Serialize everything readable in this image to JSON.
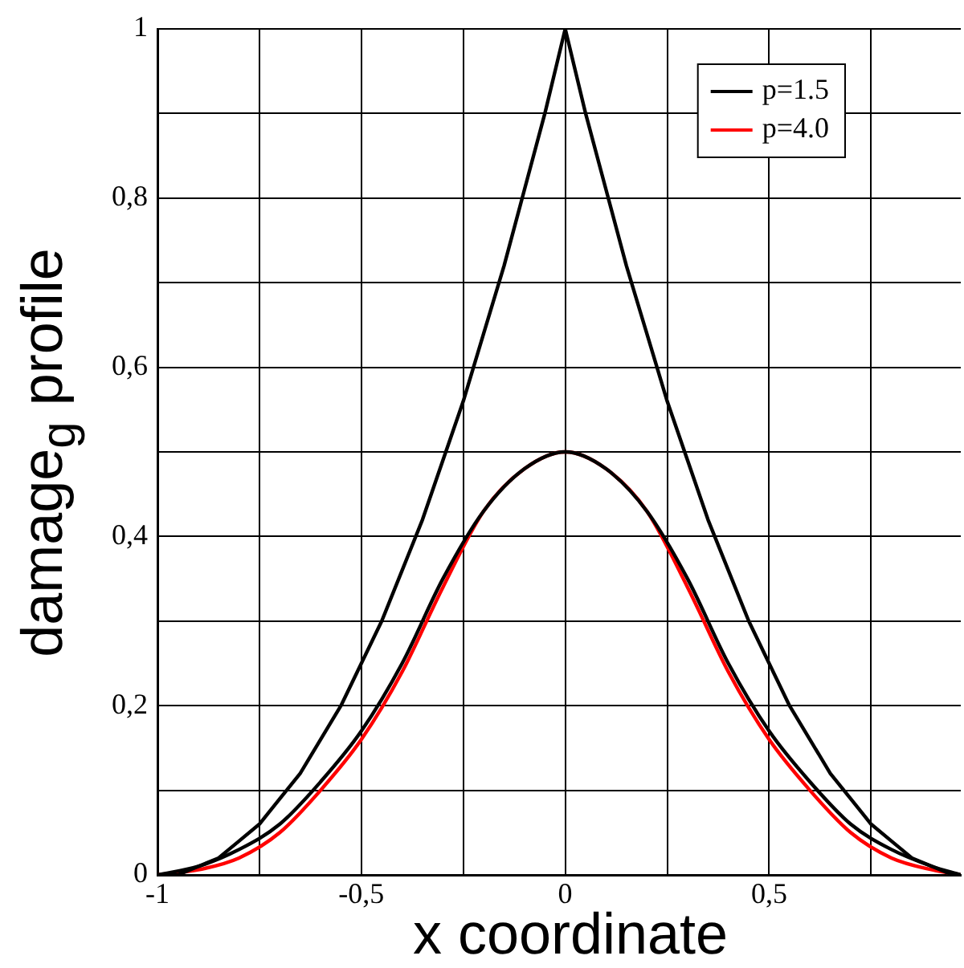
{
  "chart_data": {
    "type": "line",
    "xlabel": "x coordinate",
    "ylabel": "damage$_{g}$ profile",
    "xlim": [
      -1,
      0.97
    ],
    "ylim": [
      0,
      1
    ],
    "xticks": [
      -1,
      {
        "value": -0.75,
        "label": null
      },
      {
        "value": -0.5,
        "label": "-0,5"
      },
      {
        "value": -0.25,
        "label": null
      },
      0,
      {
        "value": 0.25,
        "label": null
      },
      {
        "value": 0.5,
        "label": "0,5"
      },
      {
        "value": 0.75,
        "label": null
      }
    ],
    "yticks": [
      0,
      {
        "value": 0.1,
        "label": null
      },
      {
        "value": 0.2,
        "label": "0,2"
      },
      {
        "value": 0.3,
        "label": null
      },
      {
        "value": 0.4,
        "label": "0,4"
      },
      {
        "value": 0.5,
        "label": null
      },
      {
        "value": 0.6,
        "label": "0,6"
      },
      {
        "value": 0.7,
        "label": null
      },
      {
        "value": 0.8,
        "label": "0,8"
      },
      {
        "value": 0.9,
        "label": null
      },
      1
    ],
    "grid": true,
    "legend": "top right",
    "line_style": "solid",
    "marker": "none",
    "series": [
      {
        "color": "#000000",
        "x": [
          -1,
          -0.95,
          -0.9,
          -0.85,
          -0.8,
          -0.75,
          -0.7,
          -0.65,
          -0.6,
          -0.55,
          -0.5,
          -0.45,
          -0.4,
          -0.35,
          -0.3,
          -0.25,
          -0.2,
          -0.15,
          -0.1,
          -0.05,
          0,
          0.05,
          0.1,
          0.15,
          0.2,
          0.25,
          0.3,
          0.35,
          0.4,
          0.45,
          0.5,
          0.55,
          0.6,
          0.65,
          0.7,
          0.75,
          0.8,
          0.85,
          0.9,
          0.95,
          0.97
        ],
        "values": [
          0,
          0,
          0.01,
          0.02,
          0.04,
          0.06,
          0.09,
          0.12,
          0.16,
          0.2,
          0.25,
          0.3,
          0.36,
          0.42,
          0.49,
          0.56,
          0.64,
          0.72,
          0.81,
          0.9,
          1,
          0.9,
          0.81,
          0.72,
          0.64,
          0.56,
          0.49,
          0.42,
          0.36,
          0.3,
          0.25,
          0.2,
          0.16,
          0.12,
          0.09,
          0.06,
          0.04,
          0.02,
          0.01,
          0,
          0
        ]
      },
      {
        "name": "p=1.5",
        "color": "#000000",
        "x": [
          -1,
          -0.9,
          -0.8,
          -0.7,
          -0.6,
          -0.5,
          -0.4,
          -0.3,
          -0.2,
          -0.1,
          0,
          0.1,
          0.2,
          0.3,
          0.4,
          0.5,
          0.6,
          0.7,
          0.8,
          0.9,
          0.97
        ],
        "values": [
          0,
          0.01,
          0.03,
          0.06,
          0.11,
          0.17,
          0.25,
          0.35,
          0.43,
          0.48,
          0.5,
          0.48,
          0.43,
          0.35,
          0.25,
          0.17,
          0.11,
          0.06,
          0.03,
          0.01,
          0
        ]
      },
      {
        "name": "p=4.0",
        "color": "#ff0000",
        "x": [
          -1,
          -0.9,
          -0.8,
          -0.7,
          -0.6,
          -0.5,
          -0.4,
          -0.3,
          -0.2,
          -0.1,
          0,
          0.1,
          0.2,
          0.3,
          0.4,
          0.5,
          0.6,
          0.7,
          0.8,
          0.9,
          0.97
        ],
        "values": [
          0,
          0.006,
          0.02,
          0.05,
          0.1,
          0.16,
          0.24,
          0.34,
          0.43,
          0.48,
          0.5,
          0.48,
          0.43,
          0.34,
          0.24,
          0.16,
          0.1,
          0.05,
          0.02,
          0.006,
          0
        ]
      }
    ]
  }
}
